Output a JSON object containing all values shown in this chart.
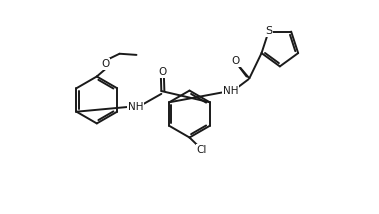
{
  "bg_color": "#ffffff",
  "line_color": "#1a1a1a",
  "line_width": 1.4,
  "font_size": 7.5,
  "xlim": [
    0,
    11
  ],
  "ylim": [
    0,
    9
  ]
}
